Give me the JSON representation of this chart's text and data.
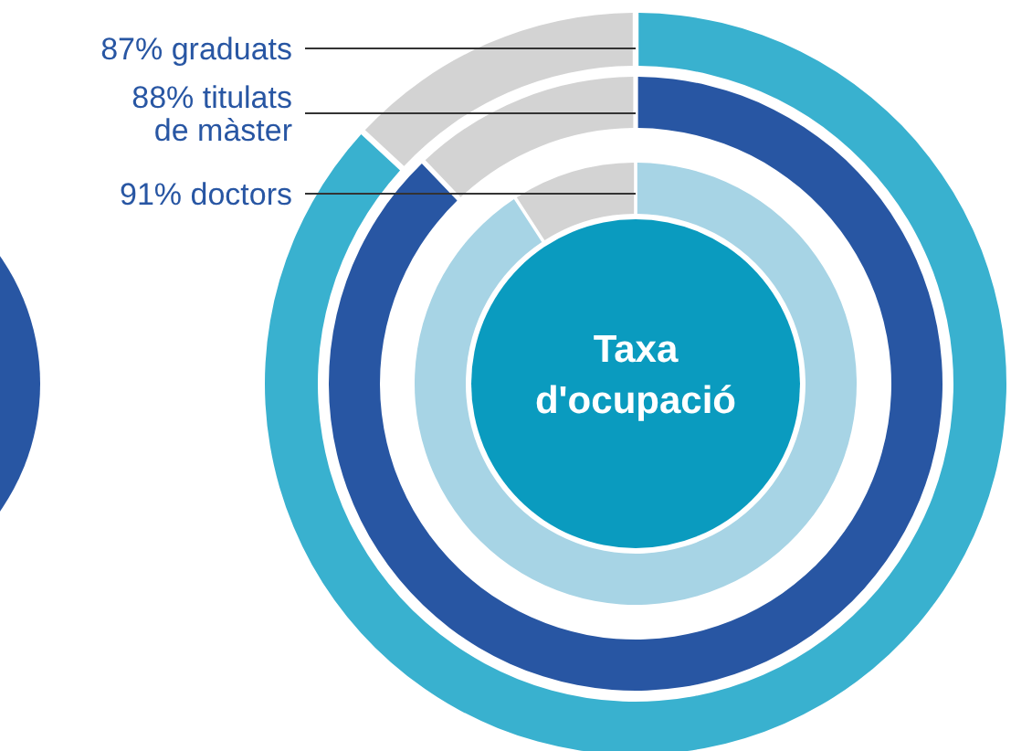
{
  "chart_data": [
    {
      "type": "donut",
      "title": "87% graduats",
      "categories": [
        null,
        null
      ],
      "values": [
        87,
        13
      ],
      "colors": [
        "#39b1cf",
        "#d3d3d3"
      ]
    },
    {
      "type": "donut",
      "title": "88% titulats de màster",
      "categories": [
        null,
        null
      ],
      "values": [
        88,
        12
      ],
      "colors": [
        "#2856a3",
        "#d3d3d3"
      ]
    },
    {
      "type": "donut",
      "title": "91% doctors",
      "categories": [
        null,
        null
      ],
      "values": [
        91,
        9
      ],
      "colors": [
        "#a7d4e5",
        "#d3d3d3"
      ],
      "annotations": [
        "Taxa d'ocupació"
      ]
    }
  ]
}
